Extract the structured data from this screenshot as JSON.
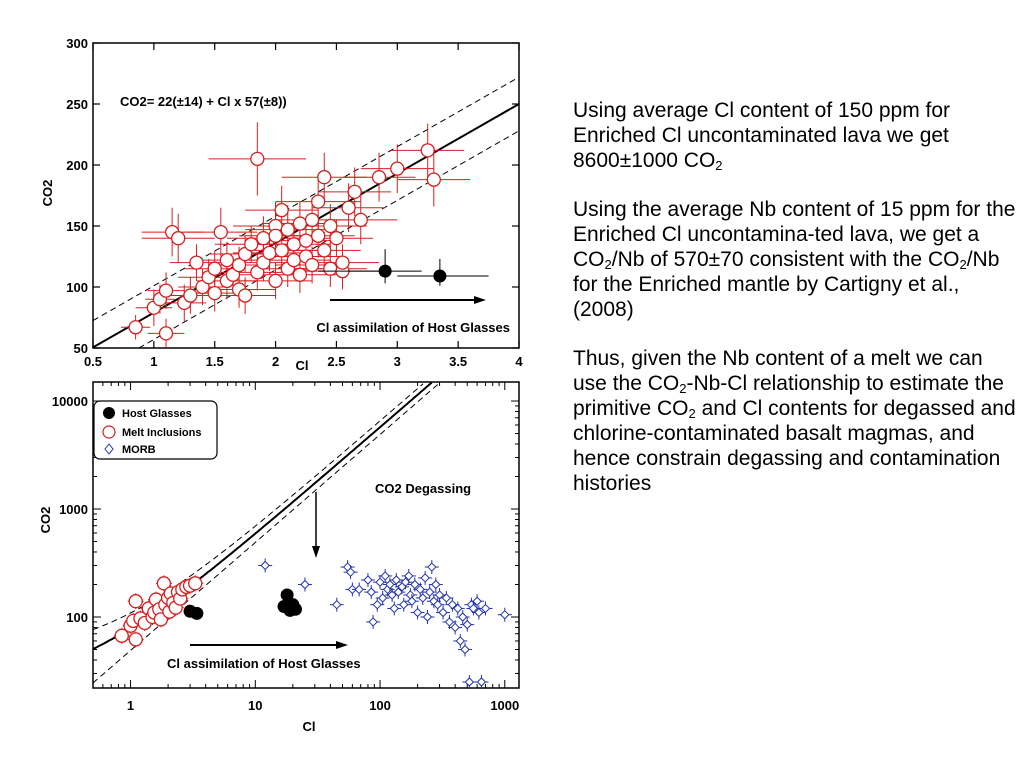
{
  "chart_data": [
    {
      "type": "scatter",
      "title": "",
      "xlabel": "Cl",
      "ylabel": "CO2",
      "xlim": [
        0.5,
        4
      ],
      "ylim": [
        50,
        300
      ],
      "x_ticks": [
        "0.5",
        "1",
        "1.5",
        "2",
        "2.5",
        "3",
        "3.5",
        "4"
      ],
      "y_ticks": [
        "50",
        "100",
        "150",
        "200",
        "250",
        "300"
      ],
      "equation": "CO2= 22(±14) + Cl x 57(±8))",
      "arrow_label": "Cl assimilation of Host Glasses",
      "fit_line": {
        "intercept": 22,
        "slope": 57,
        "band": [
          -22,
          22
        ]
      },
      "colors": {
        "melt": "#d42020",
        "host": "#000000"
      },
      "series": [
        {
          "name": "Host Glasses",
          "points": [
            [
              2.9,
              113
            ],
            [
              3.35,
              109
            ]
          ],
          "xerr": [
            [
              0.55,
              0.3
            ],
            [
              0.35,
              0.4
            ]
          ],
          "yerr": [
            [
              10,
              18
            ],
            [
              8,
              14
            ]
          ]
        },
        {
          "name": "Melt Inclusions",
          "points": [
            [
              0.85,
              67
            ],
            [
              1.0,
              83
            ],
            [
              1.05,
              90
            ],
            [
              1.1,
              97
            ],
            [
              1.1,
              62
            ],
            [
              1.15,
              145
            ],
            [
              1.2,
              140
            ],
            [
              1.25,
              87
            ],
            [
              1.3,
              93
            ],
            [
              1.35,
              120
            ],
            [
              1.4,
              100
            ],
            [
              1.45,
              108
            ],
            [
              1.5,
              95
            ],
            [
              1.5,
              115
            ],
            [
              1.55,
              145
            ],
            [
              1.6,
              105
            ],
            [
              1.6,
              122
            ],
            [
              1.65,
              110
            ],
            [
              1.7,
              118
            ],
            [
              1.7,
              98
            ],
            [
              1.75,
              127
            ],
            [
              1.75,
              93
            ],
            [
              1.8,
              135
            ],
            [
              1.85,
              205
            ],
            [
              1.85,
              112
            ],
            [
              1.9,
              140
            ],
            [
              1.9,
              120
            ],
            [
              1.95,
              128
            ],
            [
              2.0,
              150
            ],
            [
              2.0,
              142
            ],
            [
              2.0,
              105
            ],
            [
              2.05,
              163
            ],
            [
              2.05,
              130
            ],
            [
              2.1,
              115
            ],
            [
              2.1,
              147
            ],
            [
              2.15,
              122
            ],
            [
              2.15,
              135
            ],
            [
              2.2,
              152
            ],
            [
              2.2,
              110
            ],
            [
              2.25,
              138
            ],
            [
              2.25,
              125
            ],
            [
              2.3,
              118
            ],
            [
              2.3,
              155
            ],
            [
              2.35,
              142
            ],
            [
              2.35,
              170
            ],
            [
              2.4,
              130
            ],
            [
              2.4,
              190
            ],
            [
              2.45,
              115
            ],
            [
              2.45,
              150
            ],
            [
              2.5,
              140
            ],
            [
              2.55,
              113
            ],
            [
              2.55,
              120
            ],
            [
              2.6,
              165
            ],
            [
              2.65,
              178
            ],
            [
              2.7,
              155
            ],
            [
              2.85,
              190
            ],
            [
              3.0,
              197
            ],
            [
              3.25,
              212
            ],
            [
              3.3,
              188
            ]
          ],
          "xerr": [
            0.12,
            0.15,
            0.12,
            0.15,
            0.15,
            0.25,
            0.3,
            0.18,
            0.2,
            0.22,
            0.2,
            0.25,
            0.2,
            0.25,
            0.3,
            0.25,
            0.25,
            0.25,
            0.2,
            0.3,
            0.3,
            0.25,
            0.3,
            0.4,
            0.3,
            0.3,
            0.3,
            0.3,
            0.35,
            0.3,
            0.3,
            0.3,
            0.3,
            0.3,
            0.35,
            0.3,
            0.3,
            0.3,
            0.3,
            0.3,
            0.3,
            0.3,
            0.3,
            0.3,
            0.35,
            0.3,
            0.35,
            0.3,
            0.3,
            0.3,
            0.3,
            0.3,
            0.3,
            0.3,
            0.3,
            0.3,
            0.3,
            0.3,
            0.3
          ],
          "yerr": [
            10,
            15,
            12,
            15,
            12,
            20,
            20,
            15,
            15,
            15,
            15,
            15,
            15,
            15,
            20,
            15,
            15,
            15,
            15,
            15,
            15,
            15,
            15,
            30,
            15,
            18,
            15,
            15,
            20,
            18,
            15,
            20,
            15,
            15,
            20,
            15,
            18,
            18,
            15,
            18,
            15,
            15,
            18,
            18,
            22,
            15,
            20,
            15,
            18,
            15,
            15,
            15,
            20,
            20,
            20,
            20,
            20,
            22,
            22
          ]
        }
      ]
    },
    {
      "type": "scatter",
      "title": "",
      "xlabel": "Cl",
      "ylabel": "CO2",
      "x_scale": "log",
      "y_scale": "log",
      "xlim": [
        0.5,
        1300
      ],
      "ylim": [
        22,
        15000
      ],
      "x_ticks": [
        "1",
        "10",
        "100",
        "1000"
      ],
      "y_ticks": [
        "100",
        "1000",
        "10000"
      ],
      "degassing_label": "CO2 Degassing",
      "arrow_label": "Cl assimilation of Host Glasses",
      "fit_line": {
        "intercept": 22,
        "slope": 57,
        "upper": [
          44,
          65
        ],
        "lower": [
          0,
          49
        ]
      },
      "colors": {
        "melt": "#d42020",
        "host": "#000000",
        "morb": "#2233aa"
      },
      "legend": [
        "Host Glasses",
        "Melt Inclusions",
        "MORB"
      ],
      "series": [
        {
          "name": "Host Glasses",
          "points": [
            [
              3.0,
              113
            ],
            [
              3.4,
              108
            ],
            [
              17,
              125
            ],
            [
              18,
              160
            ],
            [
              19,
              115
            ],
            [
              20,
              130
            ],
            [
              21,
              118
            ]
          ]
        },
        {
          "name": "Melt Inclusions",
          "points": [
            [
              0.85,
              67
            ],
            [
              1.0,
              83
            ],
            [
              1.05,
              92
            ],
            [
              1.1,
              140
            ],
            [
              1.1,
              62
            ],
            [
              1.2,
              97
            ],
            [
              1.3,
              88
            ],
            [
              1.4,
              120
            ],
            [
              1.5,
              100
            ],
            [
              1.55,
              110
            ],
            [
              1.6,
              145
            ],
            [
              1.7,
              118
            ],
            [
              1.75,
              95
            ],
            [
              1.85,
              205
            ],
            [
              1.9,
              130
            ],
            [
              2.0,
              150
            ],
            [
              2.05,
              112
            ],
            [
              2.1,
              165
            ],
            [
              2.2,
              135
            ],
            [
              2.3,
              122
            ],
            [
              2.4,
              170
            ],
            [
              2.5,
              148
            ],
            [
              2.6,
              180
            ],
            [
              2.8,
              190
            ],
            [
              3.0,
              195
            ],
            [
              3.3,
              205
            ]
          ]
        },
        {
          "name": "MORB",
          "points": [
            [
              12,
              300
            ],
            [
              25,
              200
            ],
            [
              45,
              130
            ],
            [
              55,
              290
            ],
            [
              58,
              260
            ],
            [
              60,
              180
            ],
            [
              68,
              180
            ],
            [
              80,
              220
            ],
            [
              85,
              170
            ],
            [
              88,
              90
            ],
            [
              95,
              130
            ],
            [
              100,
              210
            ],
            [
              105,
              150
            ],
            [
              110,
              240
            ],
            [
              115,
              180
            ],
            [
              120,
              200
            ],
            [
              125,
              160
            ],
            [
              130,
              120
            ],
            [
              135,
              220
            ],
            [
              140,
              170
            ],
            [
              150,
              190
            ],
            [
              155,
              130
            ],
            [
              160,
              210
            ],
            [
              170,
              240
            ],
            [
              175,
              160
            ],
            [
              180,
              140
            ],
            [
              190,
              200
            ],
            [
              200,
              110
            ],
            [
              210,
              180
            ],
            [
              220,
              150
            ],
            [
              230,
              230
            ],
            [
              240,
              100
            ],
            [
              250,
              170
            ],
            [
              260,
              290
            ],
            [
              270,
              140
            ],
            [
              280,
              200
            ],
            [
              290,
              130
            ],
            [
              300,
              160
            ],
            [
              320,
              110
            ],
            [
              340,
              150
            ],
            [
              360,
              90
            ],
            [
              380,
              130
            ],
            [
              400,
              80
            ],
            [
              420,
              120
            ],
            [
              440,
              60
            ],
            [
              460,
              100
            ],
            [
              480,
              50
            ],
            [
              500,
              85
            ],
            [
              520,
              25
            ],
            [
              540,
              130
            ],
            [
              560,
              120
            ],
            [
              600,
              140
            ],
            [
              620,
              110
            ],
            [
              650,
              25
            ],
            [
              700,
              120
            ],
            [
              1000,
              105
            ]
          ]
        }
      ]
    }
  ],
  "text_panel": {
    "p1_a": "Using average Cl  content of 150 ppm for Enriched Cl uncontaminated lava we get  8600±1000 CO",
    "p1_sub": "2",
    "p2_a": "Using the average Nb content of 15 ppm for the Enriched Cl uncontamina-ted  lava, we get a CO",
    "p2_sub1": "2",
    "p2_b": "/Nb of 570±70  consistent with the CO",
    "p2_sub2": "2",
    "p2_c": "/Nb for the Enriched mantle by Cartigny et al., (2008)",
    "p3_a": "Thus, given the Nb content of a melt we can use the CO",
    "p3_sub1": "2",
    "p3_b": "-Nb-Cl relationship to estimate the primitive CO",
    "p3_sub2": "2",
    "p3_c": " and Cl contents for degassed and chlorine-contaminated basalt magmas, and hence constrain degassing and contamination histories"
  }
}
